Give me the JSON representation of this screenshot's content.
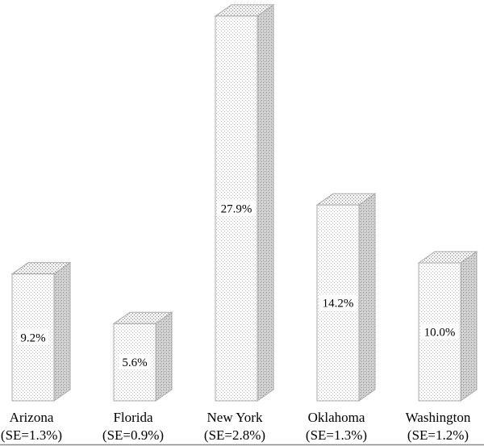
{
  "chart_data": {
    "type": "bar",
    "style": "3d-textured-bars",
    "title": "",
    "xlabel": "",
    "ylabel": "",
    "ylim": [
      0,
      29
    ],
    "grid": false,
    "legend": false,
    "categories": [
      "Arizona",
      "Florida",
      "New York",
      "Oklahoma",
      "Washington"
    ],
    "values": [
      9.2,
      5.6,
      27.9,
      14.2,
      10.0
    ],
    "value_labels": [
      "9.2%",
      "5.6%",
      "27.9%",
      "14.2%",
      "10.0%"
    ],
    "se_labels": [
      "(SE=1.3%)",
      "(SE=0.9%)",
      "(SE=2.8%)",
      "(SE=1.3%)",
      "(SE=1.2%)"
    ],
    "colors": {
      "background": "#ffffff",
      "bar_front_fill": "#fcfcfc",
      "bar_top_fill": "#f0f0f0",
      "bar_side_fill": "#dcdcdc",
      "pattern_dot_light": "#bfbfbf",
      "pattern_dot_medium": "#8c8c8c",
      "pattern_dot_dark": "#7a7a7a",
      "bar_border": "#ababab",
      "text": "#000000",
      "bottom_rule": "#8c8c8c"
    }
  }
}
